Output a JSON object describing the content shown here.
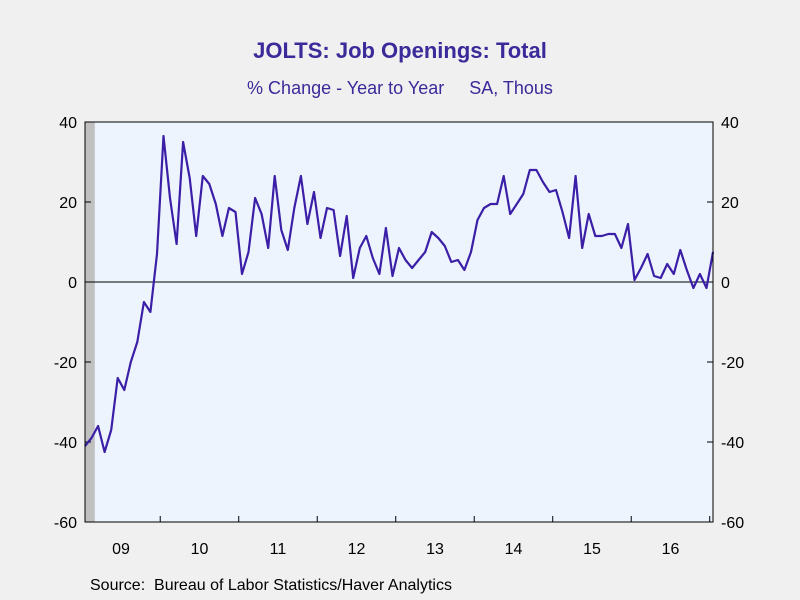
{
  "title": "JOLTS: Job Openings: Total",
  "subtitle": "% Change - Year to Year     SA, Thous",
  "source": "Source:  Bureau of Labor Statistics/Haver Analytics",
  "chart_data": {
    "type": "line",
    "title": "JOLTS: Job Openings: Total",
    "subtitle": "% Change - Year to Year     SA, Thous",
    "ylim": [
      -60,
      40
    ],
    "yticks": [
      -60,
      -40,
      -20,
      0,
      20,
      40
    ],
    "yticks_right": [
      -60,
      -40,
      -20,
      0,
      20,
      40
    ],
    "x_year_labels": [
      "09",
      "10",
      "11",
      "12",
      "13",
      "14",
      "15",
      "16"
    ],
    "x_start_month": "2009-01",
    "grid": false,
    "zero_line": true,
    "shaded_recession_months": [
      "2009-01",
      "2009-06"
    ],
    "colors": {
      "line": "#3b1fa6",
      "plot_bg": "#eef4fe",
      "shade": "#c0c0c0"
    },
    "series": [
      {
        "values": [
          -41,
          -39,
          -36,
          -42.5,
          -37,
          -24,
          -27,
          -20,
          -15,
          -5,
          -7.5,
          7,
          36.5,
          21,
          9.5,
          35,
          26,
          11.5,
          26.5,
          24.5,
          19.5,
          11.5,
          18.5,
          17.5,
          2,
          7.5,
          21,
          17,
          8.5,
          26.5,
          13,
          8,
          18.5,
          26.5,
          14.5,
          22.5,
          11,
          18.5,
          18,
          6.5,
          16.5,
          1,
          8.5,
          11.5,
          6,
          2,
          13.5,
          1.5,
          8.5,
          5.5,
          3.5,
          5.5,
          7.5,
          12.5,
          11,
          9,
          5,
          5.5,
          3,
          7.5,
          15.5,
          18.5,
          19.5,
          19.5,
          26.5,
          17,
          19.5,
          22,
          28,
          28,
          25,
          22.5,
          23,
          17.5,
          11,
          26.5,
          8.5,
          17,
          11.5,
          11.5,
          12,
          12,
          8.5,
          14.5,
          0.5,
          3.5,
          7,
          1.5,
          1,
          4.5,
          2,
          8,
          3,
          -1.5,
          2,
          -1.5,
          7.5
        ]
      }
    ]
  }
}
